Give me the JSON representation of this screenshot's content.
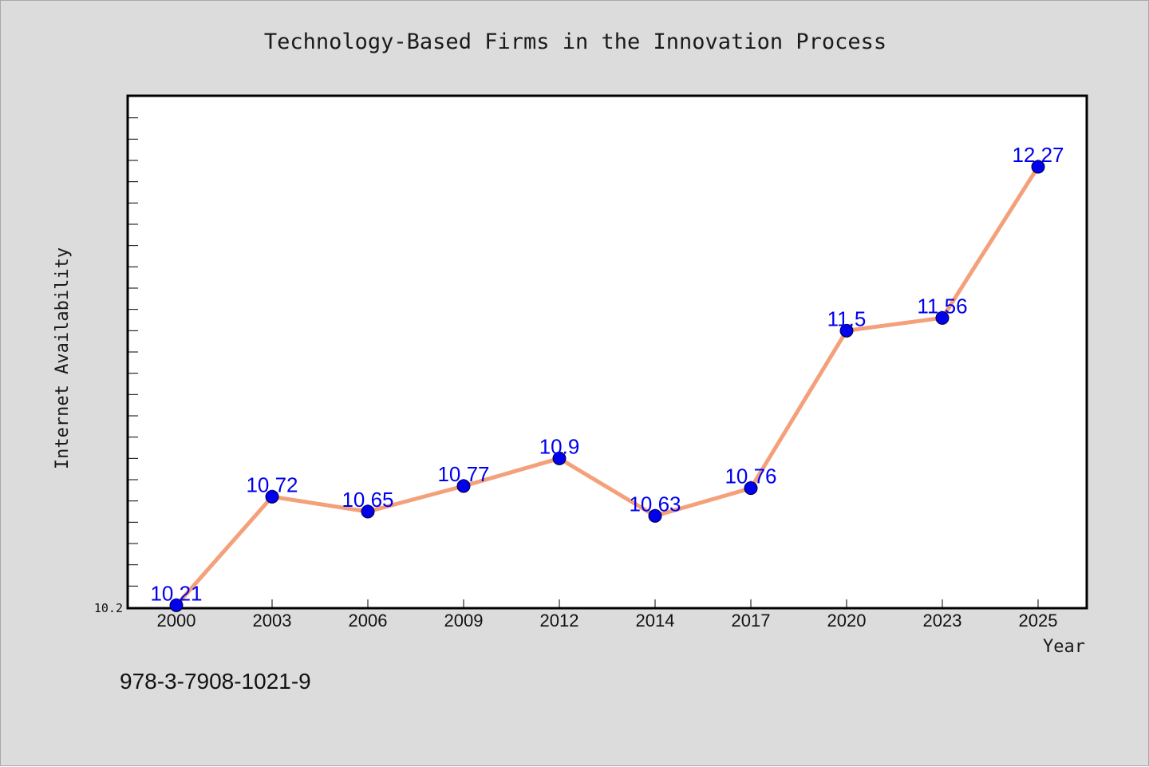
{
  "footer": {
    "code": "978-3-7908-1021-9"
  },
  "colors": {
    "background": "#dcdcdc",
    "plot_background": "#ffffff",
    "line": "#f4a07a",
    "marker": "#0000ee",
    "data_label": "#0000ee"
  },
  "chart_data": {
    "type": "line",
    "title": "Technology-Based Firms in the Innovation Process",
    "xlabel": "Year",
    "ylabel": "Internet Availability",
    "categories": [
      "2000",
      "2003",
      "2006",
      "2009",
      "2012",
      "2014",
      "2017",
      "2020",
      "2023",
      "2025"
    ],
    "series": [
      {
        "values": [
          10.21,
          10.72,
          10.65,
          10.77,
          10.9,
          10.63,
          10.76,
          11.5,
          11.56,
          12.27
        ]
      }
    ],
    "data_labels": [
      "10.21",
      "10.72",
      "10.65",
      "10.77",
      "10.9",
      "10.63",
      "10.76",
      "11.5",
      "11.56",
      "12.27"
    ],
    "yticks": [
      "10.2"
    ],
    "ylim": [
      10.2,
      12.6
    ],
    "grid": false,
    "legend": "none"
  }
}
